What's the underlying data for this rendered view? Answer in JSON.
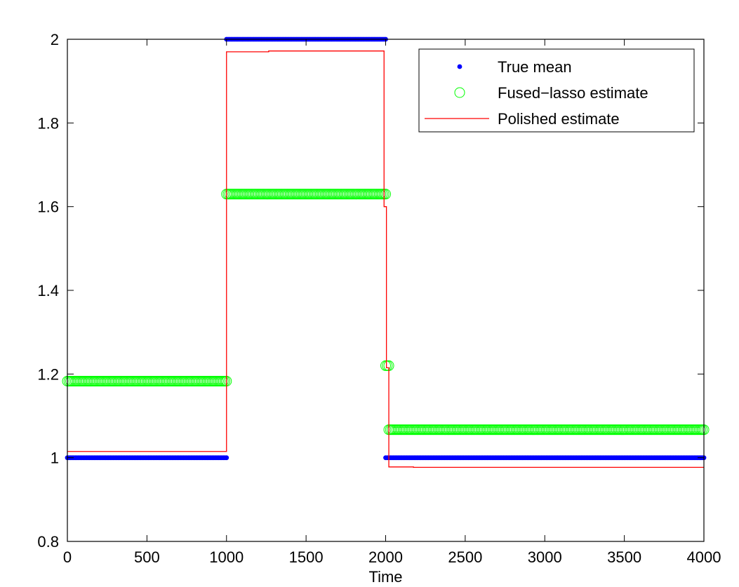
{
  "chart_data": {
    "type": "line",
    "title": "",
    "xlabel": "Time",
    "ylabel": "",
    "xlim": [
      0,
      4000
    ],
    "ylim": [
      0.8,
      2
    ],
    "xticks": [
      0,
      500,
      1000,
      1500,
      2000,
      2500,
      3000,
      3500,
      4000
    ],
    "xtick_labels": [
      "0",
      "500",
      "1000",
      "1500",
      "2000",
      "2500",
      "3000",
      "3500",
      "4000"
    ],
    "yticks": [
      0.8,
      1,
      1.2,
      1.4,
      1.6,
      1.8,
      2
    ],
    "ytick_labels": [
      "0.8",
      "1",
      "1.2",
      "1.4",
      "1.6",
      "1.8",
      "2"
    ],
    "grid": false,
    "legend_position": "top-right",
    "series": [
      {
        "name": "True mean",
        "style": "dots",
        "color": "#0000ff",
        "segments": [
          {
            "x_start": 0,
            "x_end": 1000,
            "y": 1.0
          },
          {
            "x_start": 1000,
            "x_end": 2000,
            "y": 2.0
          },
          {
            "x_start": 2000,
            "x_end": 4000,
            "y": 1.0
          }
        ]
      },
      {
        "name": "Fused−lasso estimate",
        "style": "circles",
        "color": "#00ff00",
        "segments": [
          {
            "x_start": 0,
            "x_end": 1000,
            "y": 1.183
          },
          {
            "x_start": 1000,
            "x_end": 2000,
            "y": 1.63
          },
          {
            "x_start": 2000,
            "x_end": 2020,
            "y": 1.22
          },
          {
            "x_start": 2020,
            "x_end": 4000,
            "y": 1.067
          }
        ]
      },
      {
        "name": "Polished estimate",
        "style": "line",
        "color": "#ff0000",
        "x": [
          0,
          1000,
          1000,
          1265,
          1265,
          1990,
          1990,
          2005,
          2005,
          2020,
          2020,
          2175,
          2175,
          4000
        ],
        "y": [
          1.015,
          1.015,
          1.97,
          1.97,
          1.972,
          1.972,
          1.6,
          1.6,
          1.215,
          1.215,
          0.978,
          0.978,
          0.977,
          0.977
        ]
      }
    ]
  }
}
